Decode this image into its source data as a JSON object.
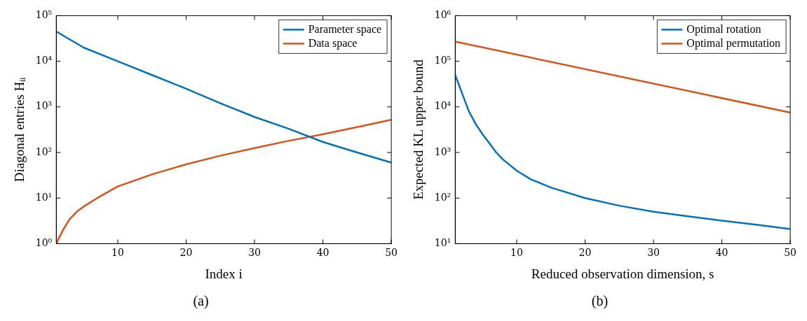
{
  "chart_data": [
    {
      "type": "line",
      "title": "(a)",
      "xlabel": "Index i",
      "ylabel": "Diagonal entries Hᵢᵢ",
      "log": "y",
      "xlim": [
        1,
        50
      ],
      "xticks": [
        10,
        20,
        30,
        40,
        50
      ],
      "ylim": [
        1,
        100000
      ],
      "yticks": [
        {
          "value": 1,
          "label": "10⁰"
        },
        {
          "value": 10,
          "label": "10¹"
        },
        {
          "value": 100,
          "label": "10²"
        },
        {
          "value": 1000,
          "label": "10³"
        },
        {
          "value": 10000,
          "label": "10⁴"
        },
        {
          "value": 100000,
          "label": "10⁵"
        }
      ],
      "legend": "top right",
      "grid": false,
      "marker": "none",
      "series": [
        {
          "name": "Parameter space",
          "color": "#0072bd",
          "x": [
            1,
            5,
            10,
            15,
            20,
            25,
            30,
            35,
            40,
            45,
            50
          ],
          "values": [
            45000,
            20000,
            10000,
            5000,
            2500,
            1200,
            600,
            330,
            170,
            100,
            60
          ]
        },
        {
          "name": "Data space",
          "color": "#d95319",
          "x": [
            1,
            2,
            3,
            4,
            5,
            7,
            10,
            15,
            20,
            25,
            30,
            35,
            40,
            45,
            50
          ],
          "values": [
            1,
            2,
            3.5,
            5,
            6.5,
            10,
            18,
            33,
            55,
            85,
            125,
            180,
            250,
            360,
            520
          ]
        }
      ]
    },
    {
      "type": "line",
      "title": "(b)",
      "xlabel": "Reduced observation dimension, s",
      "ylabel": "Expected KL upper bound",
      "log": "y",
      "xlim": [
        1,
        50
      ],
      "xticks": [
        10,
        20,
        30,
        40,
        50
      ],
      "ylim": [
        10,
        1000000
      ],
      "yticks": [
        {
          "value": 10,
          "label": "10¹"
        },
        {
          "value": 100,
          "label": "10²"
        },
        {
          "value": 1000,
          "label": "10³"
        },
        {
          "value": 10000,
          "label": "10⁴"
        },
        {
          "value": 100000,
          "label": "10⁵"
        },
        {
          "value": 1000000,
          "label": "10⁶"
        }
      ],
      "legend": "top right",
      "grid": false,
      "marker": "none",
      "series": [
        {
          "name": "Optimal rotation",
          "color": "#0072bd",
          "x": [
            1,
            2,
            3,
            4,
            5,
            6,
            7,
            8,
            10,
            12,
            15,
            20,
            25,
            30,
            35,
            40,
            45,
            50
          ],
          "values": [
            50000,
            20000,
            8000,
            4200,
            2500,
            1600,
            1000,
            700,
            400,
            260,
            170,
            100,
            68,
            50,
            40,
            32,
            26,
            21
          ]
        },
        {
          "name": "Optimal permutation",
          "color": "#d95319",
          "x": [
            1,
            50
          ],
          "values": [
            270000,
            7500
          ]
        }
      ]
    }
  ]
}
